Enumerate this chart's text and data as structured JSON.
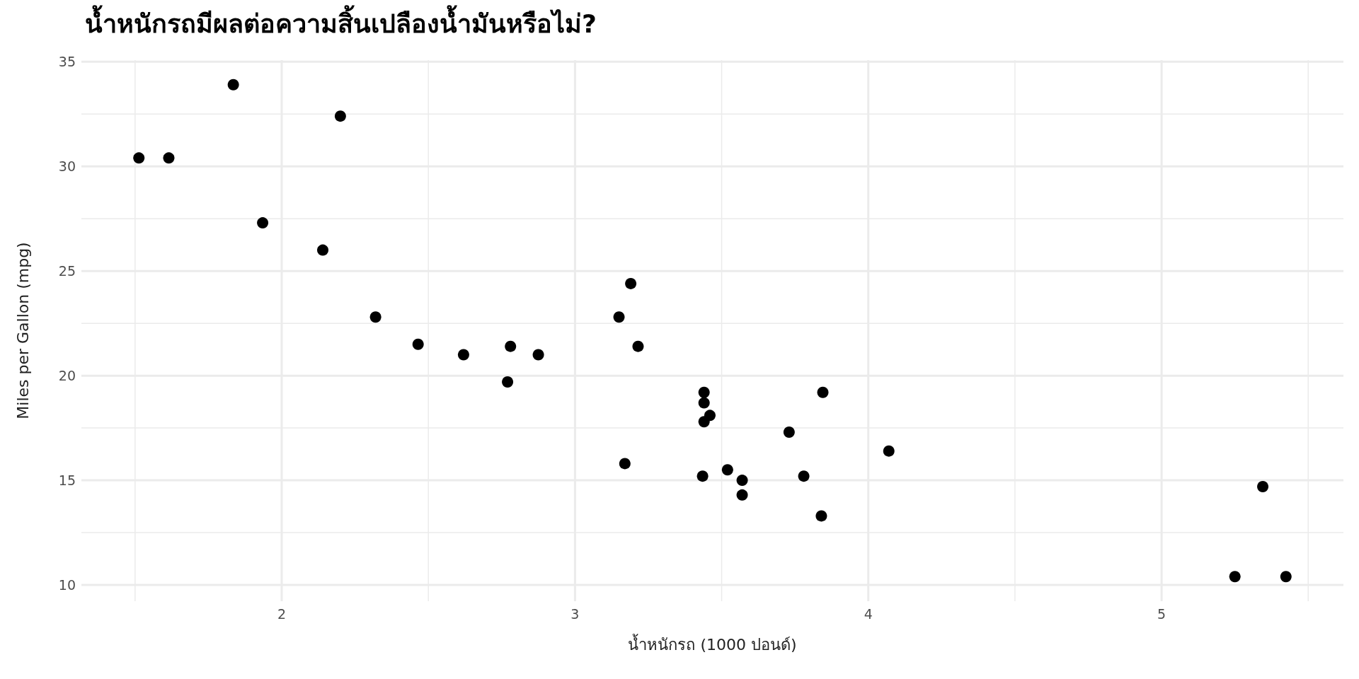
{
  "chart_data": {
    "type": "scatter",
    "title": "น้ำหนักรถมีผลต่อความสิ้นเปลืองน้ำมันหรือไม่?",
    "xlabel": "น้ำหนักรถ (1000 ปอนด์)",
    "ylabel": "Miles per Gallon (mpg)",
    "x": [
      2.62,
      2.875,
      2.32,
      3.215,
      3.44,
      3.46,
      3.57,
      3.19,
      3.15,
      3.44,
      3.44,
      4.07,
      3.73,
      3.78,
      5.25,
      5.424,
      5.345,
      2.2,
      1.615,
      1.835,
      2.465,
      3.52,
      3.435,
      3.84,
      3.845,
      1.935,
      2.14,
      1.513,
      3.17,
      2.77,
      3.57,
      2.78
    ],
    "values": [
      21.0,
      21.0,
      22.8,
      21.4,
      18.7,
      18.1,
      14.3,
      24.4,
      22.8,
      19.2,
      17.8,
      16.4,
      17.3,
      15.2,
      10.4,
      10.4,
      14.7,
      32.4,
      30.4,
      33.9,
      21.5,
      15.5,
      15.2,
      13.3,
      19.2,
      27.3,
      26.0,
      30.4,
      15.8,
      19.7,
      15.0,
      21.4
    ],
    "color": "#000000",
    "marker": "circle",
    "grid": true,
    "xlim": [
      1.317,
      5.62
    ],
    "ylim": [
      9.225,
      35.075
    ],
    "xticks": [
      2,
      3,
      4,
      5
    ],
    "yticks": [
      10,
      15,
      20,
      25,
      30,
      35
    ]
  }
}
